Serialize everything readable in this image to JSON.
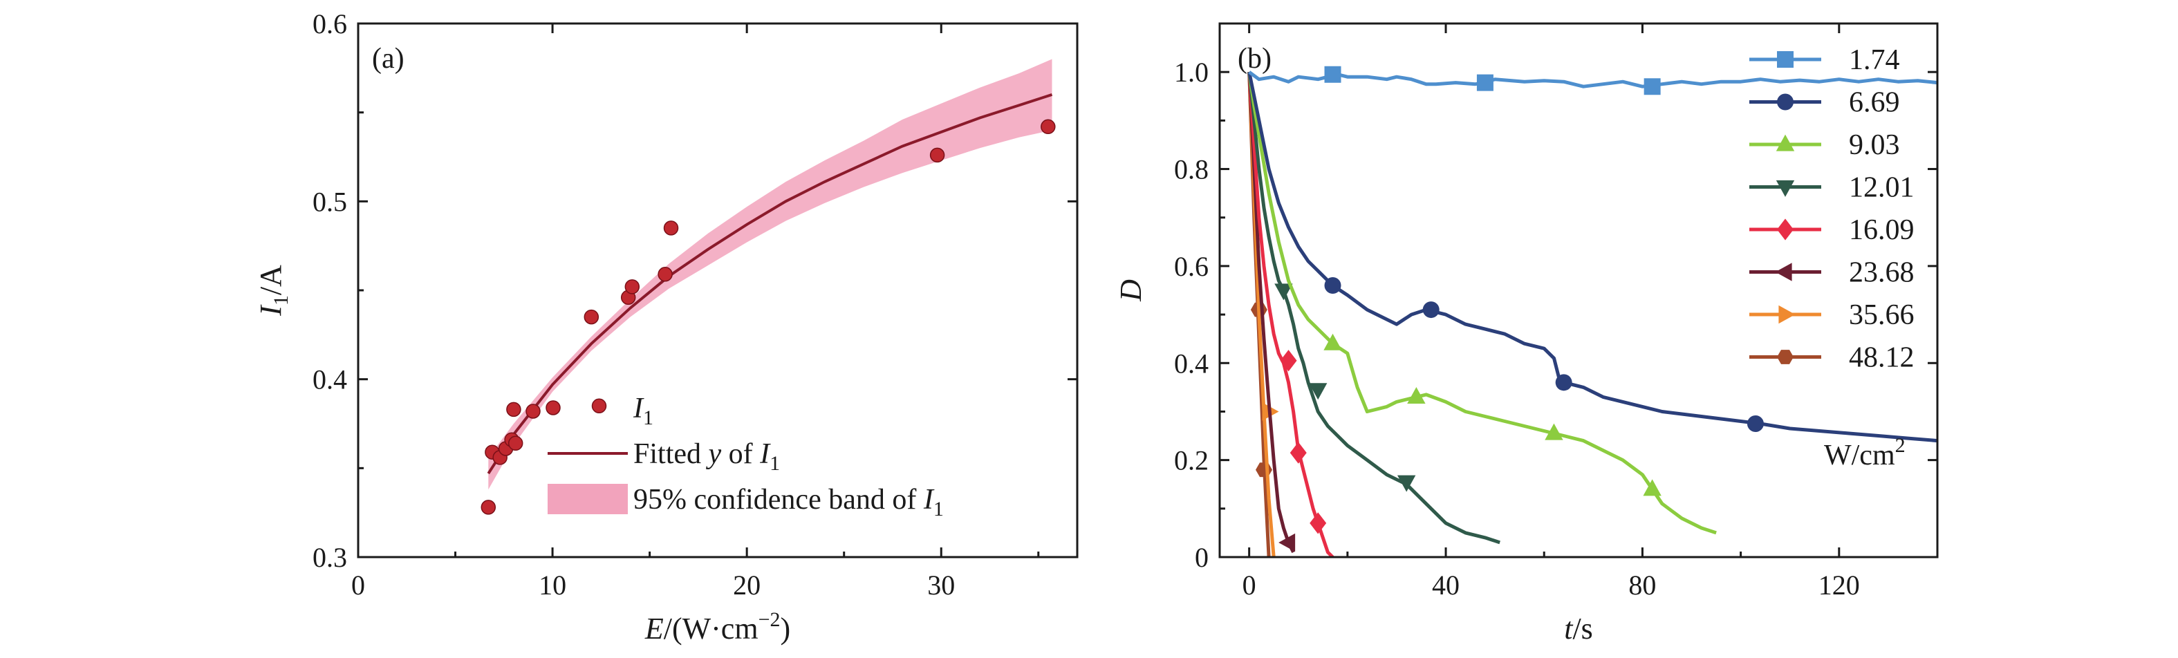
{
  "chart_data": [
    {
      "type": "scatter",
      "panel_label": "(a)",
      "xlabel": "E/(W·cm⁻²)",
      "xlabel_parts": [
        "E",
        "/(W·cm",
        "−2",
        ")"
      ],
      "ylabel": "I1/A",
      "ylabel_parts": [
        "I",
        "1",
        "/A"
      ],
      "xlim": [
        0,
        37
      ],
      "ylim": [
        0.3,
        0.6
      ],
      "xticks": [
        0,
        10,
        20,
        30
      ],
      "yticks": [
        0.3,
        0.4,
        0.5,
        0.6
      ],
      "grid": false,
      "legend_position": "bottom",
      "series": [
        {
          "name": "I1",
          "legend_parts": [
            "I",
            "1",
            ""
          ],
          "kind": "points",
          "color": "#c0282f",
          "x": [
            6.7,
            6.9,
            7.3,
            7.6,
            7.9,
            8.0,
            8.1,
            9.0,
            12.0,
            12.4,
            13.9,
            14.1,
            15.8,
            16.1,
            29.8,
            35.5
          ],
          "y": [
            0.328,
            0.359,
            0.356,
            0.361,
            0.366,
            0.383,
            0.364,
            0.382,
            0.435,
            0.385,
            0.446,
            0.452,
            0.459,
            0.485,
            0.526,
            0.542
          ]
        },
        {
          "name": "Fitted y of I1",
          "legend_parts": [
            "Fitted ",
            "y",
            " of ",
            "I",
            "1"
          ],
          "kind": "line",
          "color": "#8b1a2b",
          "x": [
            6.7,
            8,
            10,
            12,
            14,
            16,
            18,
            20,
            22,
            24,
            26,
            28,
            30,
            32,
            34,
            35.7
          ],
          "y": [
            0.347,
            0.369,
            0.397,
            0.42,
            0.44,
            0.458,
            0.473,
            0.487,
            0.5,
            0.511,
            0.521,
            0.531,
            0.539,
            0.547,
            0.554,
            0.56
          ]
        },
        {
          "name": "95% confidence band of I1",
          "legend_parts": [
            "95% confidence band of ",
            "I",
            "1"
          ],
          "kind": "band",
          "color": "#f2a3bc",
          "x": [
            6.7,
            8,
            10,
            12,
            14,
            16,
            18,
            20,
            22,
            24,
            26,
            28,
            30,
            32,
            34,
            35.7
          ],
          "lower": [
            0.338,
            0.363,
            0.393,
            0.416,
            0.435,
            0.451,
            0.464,
            0.477,
            0.489,
            0.499,
            0.508,
            0.516,
            0.523,
            0.53,
            0.536,
            0.54
          ],
          "upper": [
            0.356,
            0.375,
            0.401,
            0.424,
            0.445,
            0.465,
            0.482,
            0.497,
            0.511,
            0.523,
            0.534,
            0.546,
            0.555,
            0.564,
            0.572,
            0.58
          ]
        }
      ]
    },
    {
      "type": "line",
      "panel_label": "(b)",
      "xlabel": "t/s",
      "xlabel_parts": [
        "t",
        "/s"
      ],
      "ylabel": "D",
      "xlim": [
        -6,
        140
      ],
      "ylim": [
        0,
        1.1
      ],
      "xticks": [
        0,
        40,
        80,
        120
      ],
      "yticks": [
        0,
        0.2,
        0.4,
        0.6,
        0.8,
        1.0
      ],
      "ytick_labels": [
        "0",
        "0.2",
        "0.4",
        "0.6",
        "0.8",
        "1.0"
      ],
      "grid": false,
      "legend_position": "top-right",
      "legend_unit": "W/cm²",
      "legend_unit_parts": [
        "W/cm",
        "2"
      ],
      "series": [
        {
          "name": "1.74",
          "color": "#4e8fce",
          "marker": "square",
          "x": [
            0,
            2,
            5,
            8,
            10,
            14,
            18,
            20,
            24,
            28,
            30,
            33,
            36,
            38,
            42,
            46,
            48,
            50,
            56,
            60,
            64,
            68,
            72,
            76,
            80,
            84,
            88,
            92,
            96,
            100,
            104,
            108,
            112,
            116,
            120,
            124,
            128,
            132,
            136,
            140
          ],
          "y": [
            1.0,
            0.985,
            0.99,
            0.98,
            0.99,
            0.985,
            0.995,
            0.99,
            0.99,
            0.985,
            0.99,
            0.985,
            0.975,
            0.975,
            0.978,
            0.975,
            0.978,
            0.985,
            0.98,
            0.982,
            0.98,
            0.97,
            0.975,
            0.98,
            0.97,
            0.975,
            0.98,
            0.975,
            0.98,
            0.98,
            0.985,
            0.98,
            0.983,
            0.98,
            0.985,
            0.98,
            0.985,
            0.98,
            0.982,
            0.978
          ],
          "markers_x": [
            17,
            48,
            82
          ],
          "markers_y": [
            0.995,
            0.978,
            0.97
          ]
        },
        {
          "name": "6.69",
          "color": "#2b3f7a",
          "marker": "circle",
          "x": [
            0,
            1,
            2,
            4,
            6,
            8,
            10,
            12,
            14,
            17,
            20,
            24,
            28,
            30,
            33,
            36,
            40,
            44,
            48,
            52,
            56,
            60,
            62,
            63,
            64,
            68,
            72,
            76,
            80,
            84,
            88,
            92,
            96,
            100,
            104,
            110,
            116,
            122,
            128,
            134,
            140
          ],
          "y": [
            1.0,
            0.95,
            0.9,
            0.8,
            0.73,
            0.68,
            0.64,
            0.61,
            0.59,
            0.56,
            0.54,
            0.51,
            0.49,
            0.48,
            0.5,
            0.51,
            0.5,
            0.48,
            0.47,
            0.46,
            0.44,
            0.43,
            0.41,
            0.37,
            0.36,
            0.35,
            0.33,
            0.32,
            0.31,
            0.3,
            0.295,
            0.29,
            0.285,
            0.28,
            0.275,
            0.265,
            0.26,
            0.255,
            0.25,
            0.245,
            0.24
          ],
          "markers_x": [
            17,
            37,
            64,
            103
          ],
          "markers_y": [
            0.56,
            0.51,
            0.36,
            0.275
          ]
        },
        {
          "name": "9.03",
          "color": "#8ccc3f",
          "marker": "triangle-up",
          "x": [
            0,
            1,
            2,
            4,
            6,
            8,
            10,
            12,
            14,
            17,
            20,
            22,
            24,
            28,
            30,
            34,
            36,
            40,
            44,
            48,
            52,
            56,
            60,
            64,
            68,
            72,
            76,
            80,
            82,
            84,
            88,
            92,
            95
          ],
          "y": [
            1.0,
            0.93,
            0.87,
            0.75,
            0.65,
            0.57,
            0.52,
            0.49,
            0.47,
            0.44,
            0.42,
            0.35,
            0.3,
            0.31,
            0.32,
            0.33,
            0.335,
            0.32,
            0.3,
            0.29,
            0.28,
            0.27,
            0.26,
            0.25,
            0.24,
            0.22,
            0.2,
            0.17,
            0.14,
            0.11,
            0.08,
            0.06,
            0.05
          ],
          "markers_x": [
            17,
            34,
            62,
            82
          ],
          "markers_y": [
            0.44,
            0.33,
            0.255,
            0.14
          ]
        },
        {
          "name": "12.01",
          "color": "#2f5a4a",
          "marker": "triangle-down",
          "x": [
            0,
            1,
            2,
            3,
            4,
            5,
            6,
            7,
            8,
            9,
            10,
            11,
            12,
            13,
            14,
            16,
            18,
            20,
            24,
            28,
            32,
            36,
            40,
            44,
            48,
            51
          ],
          "y": [
            1.0,
            0.9,
            0.8,
            0.72,
            0.66,
            0.61,
            0.57,
            0.55,
            0.52,
            0.48,
            0.43,
            0.4,
            0.36,
            0.33,
            0.3,
            0.27,
            0.25,
            0.23,
            0.2,
            0.17,
            0.15,
            0.11,
            0.07,
            0.05,
            0.04,
            0.03
          ],
          "markers_x": [
            7,
            14,
            32
          ],
          "markers_y": [
            0.55,
            0.345,
            0.155
          ]
        },
        {
          "name": "16.09",
          "color": "#e82d46",
          "marker": "diamond",
          "x": [
            0,
            1,
            2,
            3,
            4,
            5,
            6,
            7,
            8,
            9,
            10,
            11,
            12,
            13,
            14,
            15,
            16,
            17
          ],
          "y": [
            1.0,
            0.85,
            0.7,
            0.6,
            0.52,
            0.46,
            0.42,
            0.4,
            0.36,
            0.3,
            0.22,
            0.18,
            0.14,
            0.1,
            0.07,
            0.04,
            0.01,
            0.0
          ],
          "markers_x": [
            8,
            10,
            14
          ],
          "markers_y": [
            0.405,
            0.215,
            0.07
          ]
        },
        {
          "name": "23.68",
          "color": "#6b1f32",
          "marker": "triangle-left",
          "x": [
            0,
            1,
            2,
            3,
            4,
            5,
            6,
            7,
            8,
            9
          ],
          "y": [
            1.0,
            0.8,
            0.6,
            0.45,
            0.32,
            0.2,
            0.1,
            0.06,
            0.03,
            0.01
          ],
          "markers_x": [
            8
          ],
          "markers_y": [
            0.03
          ]
        },
        {
          "name": "35.66",
          "color": "#ef8a2f",
          "marker": "triangle-right",
          "x": [
            0,
            1,
            2,
            3,
            4,
            5
          ],
          "y": [
            1.0,
            0.75,
            0.5,
            0.3,
            0.12,
            0.0
          ],
          "markers_x": [
            4
          ],
          "markers_y": [
            0.3
          ]
        },
        {
          "name": "48.12",
          "color": "#a34a2a",
          "marker": "hexagon",
          "x": [
            0,
            1,
            2,
            3,
            4
          ],
          "y": [
            1.0,
            0.7,
            0.45,
            0.2,
            0.0
          ],
          "markers_x": [
            2,
            3
          ],
          "markers_y": [
            0.51,
            0.18
          ]
        }
      ]
    }
  ]
}
